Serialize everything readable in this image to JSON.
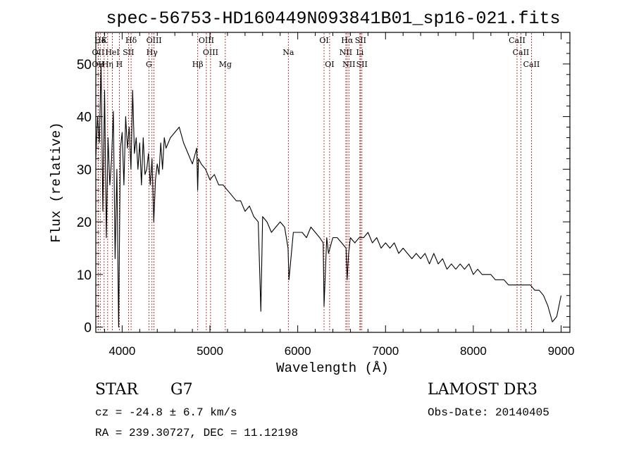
{
  "chart_data": {
    "type": "line",
    "title": "spec-56753-HD160449N093841B01_sp16-021.fits",
    "xlabel": "Wavelength (Å)",
    "ylabel": "Flux (relative)",
    "xlim": [
      3700,
      9100
    ],
    "ylim": [
      -1,
      56
    ],
    "x_ticks": [
      4000,
      5000,
      6000,
      7000,
      8000,
      9000
    ],
    "y_ticks": [
      0,
      10,
      20,
      30,
      40,
      50
    ],
    "series": [
      {
        "name": "spectrum",
        "x": [
          3700,
          3720,
          3740,
          3760,
          3780,
          3800,
          3820,
          3840,
          3860,
          3880,
          3900,
          3920,
          3940,
          3960,
          3980,
          4000,
          4020,
          4040,
          4060,
          4080,
          4100,
          4120,
          4140,
          4160,
          4180,
          4200,
          4220,
          4240,
          4260,
          4280,
          4300,
          4320,
          4340,
          4360,
          4380,
          4400,
          4420,
          4440,
          4460,
          4480,
          4500,
          4550,
          4600,
          4650,
          4700,
          4750,
          4800,
          4850,
          4860,
          4870,
          4900,
          4950,
          5000,
          5050,
          5100,
          5150,
          5200,
          5250,
          5300,
          5350,
          5400,
          5450,
          5500,
          5550,
          5580,
          5600,
          5650,
          5700,
          5750,
          5800,
          5850,
          5890,
          5900,
          5950,
          6000,
          6050,
          6100,
          6150,
          6200,
          6250,
          6290,
          6300,
          6330,
          6350,
          6400,
          6450,
          6500,
          6550,
          6563,
          6580,
          6600,
          6650,
          6700,
          6750,
          6800,
          6850,
          6900,
          6950,
          7000,
          7050,
          7100,
          7150,
          7200,
          7250,
          7300,
          7350,
          7400,
          7450,
          7500,
          7550,
          7600,
          7650,
          7700,
          7750,
          7800,
          7850,
          7900,
          7950,
          8000,
          8050,
          8100,
          8150,
          8200,
          8250,
          8300,
          8350,
          8400,
          8450,
          8500,
          8550,
          8600,
          8650,
          8700,
          8750,
          8800,
          8850,
          8900,
          8950,
          9000
        ],
        "y": [
          32,
          40,
          35,
          50,
          22,
          45,
          17,
          36,
          27,
          32,
          41,
          13,
          30,
          0,
          34,
          37,
          27,
          40,
          34,
          38,
          30,
          45,
          33,
          36,
          30,
          35,
          27,
          36,
          29,
          30,
          33,
          27,
          32,
          20,
          28,
          31,
          29,
          35,
          30,
          36,
          34,
          36,
          37,
          38,
          35,
          33,
          31,
          34,
          26,
          32,
          31,
          30,
          28,
          29,
          27,
          27,
          26,
          25,
          24,
          24,
          22,
          23,
          21,
          20,
          3,
          21,
          20,
          18,
          19,
          20,
          19,
          15,
          9,
          18,
          18,
          18,
          17,
          19,
          18,
          17,
          16,
          4,
          17,
          14,
          17,
          17,
          16,
          15,
          9,
          14,
          17,
          16,
          17,
          17,
          18,
          16,
          17,
          15,
          16,
          15,
          16,
          14,
          15,
          14,
          13,
          14,
          13,
          14,
          12,
          14,
          12,
          13,
          11,
          12,
          11,
          12,
          11,
          12,
          10,
          11,
          10,
          10,
          10,
          9,
          9,
          9,
          8,
          8,
          8,
          8,
          8,
          8,
          7,
          7,
          6,
          4,
          1,
          2,
          6
        ],
        "color": "#000000"
      }
    ],
    "line_markers": [
      {
        "label": "Hδ",
        "x": 3750,
        "row": 0
      },
      {
        "label": "K",
        "x": 3795,
        "row": 0
      },
      {
        "label": "Hδ",
        "x": 4102,
        "row": 0
      },
      {
        "label": "OIII",
        "x": 4363,
        "row": 0
      },
      {
        "label": "OIII",
        "x": 4959,
        "row": 0
      },
      {
        "label": "OI",
        "x": 6300,
        "row": 0
      },
      {
        "label": "Hα",
        "x": 6563,
        "row": 0
      },
      {
        "label": "SII",
        "x": 6716,
        "row": 0
      },
      {
        "label": "CaII",
        "x": 8498,
        "row": 0
      },
      {
        "label": "OII",
        "x": 3727,
        "row": 1
      },
      {
        "label": "HeI",
        "x": 3889,
        "row": 1
      },
      {
        "label": "SII",
        "x": 4072,
        "row": 1
      },
      {
        "label": "Hγ",
        "x": 4340,
        "row": 1
      },
      {
        "label": "OIII",
        "x": 5007,
        "row": 1
      },
      {
        "label": "Na",
        "x": 5893,
        "row": 1
      },
      {
        "label": "NII",
        "x": 6548,
        "row": 1
      },
      {
        "label": "Li",
        "x": 6708,
        "row": 1
      },
      {
        "label": "CaII",
        "x": 8542,
        "row": 1
      },
      {
        "label": "OII",
        "x": 3727,
        "row": 2
      },
      {
        "label": "Hη",
        "x": 3835,
        "row": 2
      },
      {
        "label": "H",
        "x": 3968,
        "row": 2
      },
      {
        "label": "G",
        "x": 4305,
        "row": 2
      },
      {
        "label": "Hβ",
        "x": 4861,
        "row": 2
      },
      {
        "label": "Mg",
        "x": 5175,
        "row": 2
      },
      {
        "label": "OI",
        "x": 6363,
        "row": 2
      },
      {
        "label": "NII",
        "x": 6583,
        "row": 2
      },
      {
        "label": "SII",
        "x": 6731,
        "row": 2
      },
      {
        "label": "CaII",
        "x": 8662,
        "row": 2
      }
    ]
  },
  "info": {
    "object_class": "STAR",
    "subclass": "G7",
    "survey": "LAMOST DR3",
    "redshift": "cz = -24.8 ± 6.7 km/s",
    "obs_date": "Obs-Date: 20140405",
    "coords": "RA = 239.30727, DEC =  11.12198"
  },
  "colors": {
    "axis": "#000000",
    "spectrum": "#000000",
    "marker_line": "#c00000"
  }
}
